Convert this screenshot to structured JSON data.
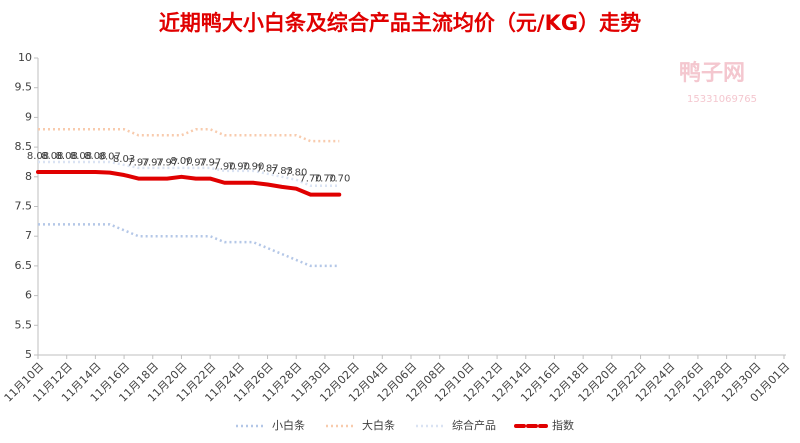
{
  "chart_data": {
    "type": "line",
    "title": "近期鸭大小白条及综合产品主流均价（元/KG）走势",
    "watermark": {
      "name": "鸭子网",
      "phone": "15331069765"
    },
    "categories": [
      "11月10日",
      null,
      "11月12日",
      null,
      "11月14日",
      null,
      "11月16日",
      null,
      "11月18日",
      null,
      "11月20日",
      null,
      "11月22日",
      null,
      "11月24日",
      null,
      "11月26日",
      null,
      "11月28日",
      null,
      "11月30日",
      null,
      "12月02日",
      null,
      "12月04日",
      null,
      "12月06日",
      null,
      "12月08日",
      null,
      "12月10日",
      null,
      "12月12日",
      null,
      "12月14日",
      null,
      "12月16日",
      null,
      "12月18日",
      null,
      "12月20日",
      null,
      "12月22日",
      null,
      "12月24日",
      null,
      "12月26日",
      null,
      "12月28日",
      null,
      "12月30日",
      null,
      "01月01日"
    ],
    "ylim": [
      5,
      10
    ],
    "yticks": [
      5,
      5.5,
      6,
      6.5,
      7,
      7.5,
      8,
      8.5,
      9,
      9.5,
      10
    ],
    "grid": false,
    "legend": "bottom",
    "series": [
      {
        "name": "小白条",
        "color": "#b4c7e7",
        "style": "dotted",
        "values": [
          7.2,
          7.2,
          7.2,
          7.2,
          7.2,
          7.2,
          7.1,
          7.0,
          7.0,
          7.0,
          7.0,
          7.0,
          7.0,
          6.9,
          6.9,
          6.9,
          6.8,
          6.7,
          6.6,
          6.5,
          6.5,
          6.5,
          null,
          null,
          null,
          null,
          null,
          null,
          null,
          null,
          null,
          null,
          null,
          null,
          null,
          null,
          null,
          null,
          null,
          null,
          null,
          null,
          null,
          null,
          null,
          null,
          null,
          null,
          null,
          null,
          null,
          null,
          null
        ]
      },
      {
        "name": "大白条",
        "color": "#f8cbad",
        "style": "dotted",
        "values": [
          8.8,
          8.8,
          8.8,
          8.8,
          8.8,
          8.8,
          8.8,
          8.7,
          8.7,
          8.7,
          8.7,
          8.8,
          8.8,
          8.7,
          8.7,
          8.7,
          8.7,
          8.7,
          8.7,
          8.6,
          8.6,
          8.6,
          null,
          null,
          null,
          null,
          null,
          null,
          null,
          null,
          null,
          null,
          null,
          null,
          null,
          null,
          null,
          null,
          null,
          null,
          null,
          null,
          null,
          null,
          null,
          null,
          null,
          null,
          null,
          null,
          null,
          null,
          null
        ]
      },
      {
        "name": "综合产品",
        "color": "#dae3f3",
        "style": "dotted",
        "values": [
          8.25,
          8.25,
          8.25,
          8.25,
          8.25,
          8.25,
          8.2,
          8.15,
          8.15,
          8.15,
          8.15,
          8.15,
          8.15,
          8.1,
          8.1,
          8.1,
          8.05,
          8.0,
          7.95,
          7.85,
          7.85,
          7.85,
          null,
          null,
          null,
          null,
          null,
          null,
          null,
          null,
          null,
          null,
          null,
          null,
          null,
          null,
          null,
          null,
          null,
          null,
          null,
          null,
          null,
          null,
          null,
          null,
          null,
          null,
          null,
          null,
          null,
          null,
          null
        ]
      },
      {
        "name": "指数",
        "color": "#e00000",
        "style": "thick",
        "values": [
          8.08,
          8.08,
          8.08,
          8.08,
          8.08,
          8.07,
          8.03,
          7.97,
          7.97,
          7.97,
          8.0,
          7.97,
          7.97,
          7.9,
          7.9,
          7.9,
          7.87,
          7.83,
          7.8,
          7.7,
          7.7,
          7.7,
          null,
          null,
          null,
          null,
          null,
          null,
          null,
          null,
          null,
          null,
          null,
          null,
          null,
          null,
          null,
          null,
          null,
          null,
          null,
          null,
          null,
          null,
          null,
          null,
          null,
          null,
          null,
          null,
          null,
          null,
          null
        ],
        "value_labels": [
          "8.08",
          "8.08",
          "8.08",
          "8.08",
          "8.08",
          "8.07",
          "8.03",
          "7.97",
          "7.97",
          "7.97",
          "8.00",
          "7.97",
          "7.97",
          "7.90",
          "7.90",
          "7.90",
          "7.87",
          "7.83",
          "7.80",
          "7.70",
          "7.70",
          "7.70",
          null,
          null,
          null,
          null,
          null,
          null,
          null,
          null,
          null,
          null,
          null,
          null,
          null,
          null,
          null,
          null,
          null,
          null,
          null,
          null,
          null,
          null,
          null,
          null,
          null,
          null,
          null,
          null,
          null,
          null,
          null
        ]
      }
    ]
  }
}
